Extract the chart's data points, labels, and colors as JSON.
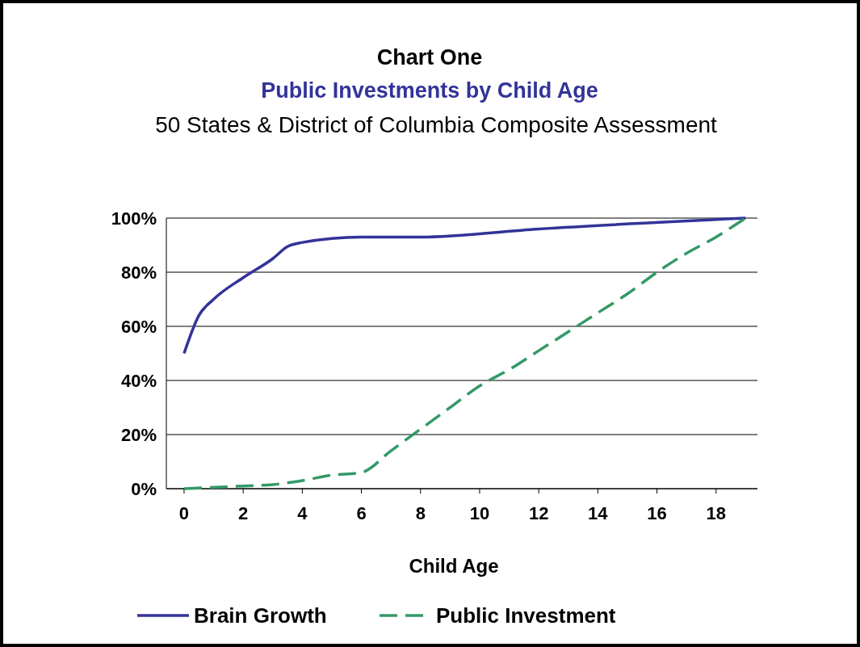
{
  "chart_data": {
    "type": "line",
    "title": "Chart One",
    "subtitle": "Public Investments by Child Age",
    "annotations": [
      "50 States & District of Columbia Composite Assessment"
    ],
    "xlabel": "Child Age",
    "xlim": [
      -0.6,
      19.4
    ],
    "xticks": [
      0,
      2,
      4,
      6,
      8,
      10,
      12,
      14,
      16,
      18
    ],
    "ylim": [
      0,
      100
    ],
    "yticks": [
      {
        "value": 0,
        "label": "0%"
      },
      {
        "value": 20,
        "label": "20%"
      },
      {
        "value": 40,
        "label": "40%"
      },
      {
        "value": 60,
        "label": "60%"
      },
      {
        "value": 80,
        "label": "80%"
      },
      {
        "value": 100,
        "label": "100%"
      }
    ],
    "grid": "y",
    "legend": "bottom",
    "marker": "none",
    "series": [
      {
        "name": "Brain Growth",
        "color": "#333399",
        "line_style": "solid",
        "x": [
          0,
          0.5,
          1,
          2,
          3,
          3.5,
          4,
          6,
          8,
          12,
          19
        ],
        "values": [
          50,
          64,
          70,
          78,
          85,
          89.5,
          91,
          93,
          93,
          96,
          100
        ]
      },
      {
        "name": "Public Investment",
        "color": "#339966",
        "line_style": "dashed",
        "x": [
          0,
          2,
          3,
          4,
          5,
          6,
          7,
          8,
          9,
          10,
          11,
          12,
          13,
          14,
          15,
          16,
          17,
          18,
          19
        ],
        "values": [
          0,
          1,
          1.5,
          3,
          5,
          6,
          14,
          22,
          30,
          38,
          44,
          51,
          58,
          65,
          72,
          80,
          87,
          93,
          100
        ]
      }
    ]
  }
}
